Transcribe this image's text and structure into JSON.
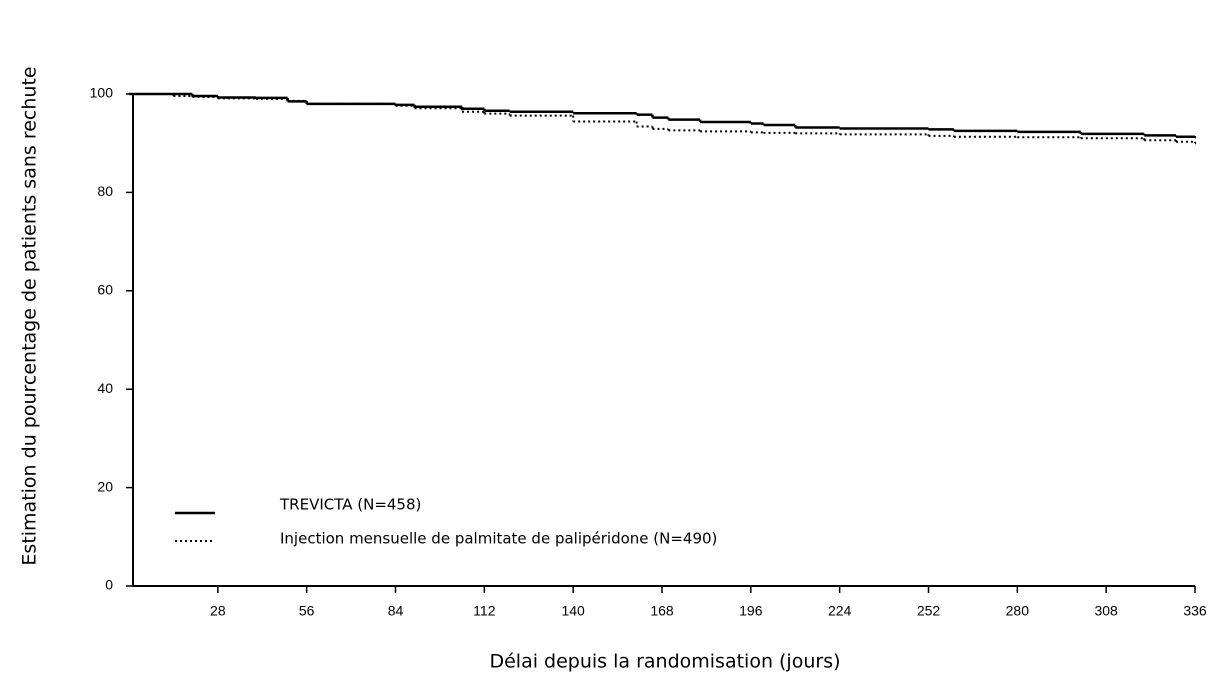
{
  "chart_data": {
    "type": "step",
    "x_label": "Délai depuis la randomisation (jours)",
    "y_label": "Estimation du pourcentage de patients sans rechute",
    "x": [
      0,
      14,
      20,
      28,
      40,
      50,
      56,
      84,
      90,
      105,
      112,
      120,
      140,
      160,
      165,
      170,
      180,
      196,
      200,
      210,
      224,
      252,
      260,
      280,
      300,
      320,
      330,
      336
    ],
    "series": [
      {
        "name": "TREVICTA (N=458)",
        "color": "#000000",
        "style": "solid",
        "values": [
          100,
          100,
          99.6,
          99.3,
          99.2,
          98.5,
          98,
          97.8,
          97.4,
          97,
          96.6,
          96.4,
          96.1,
          95.8,
          95.2,
          94.8,
          94.3,
          94,
          93.7,
          93.2,
          93,
          92.8,
          92.5,
          92.3,
          91.9,
          91.6,
          91.3,
          91.2
        ]
      },
      {
        "name": "Injection mensuelle de palmitate de palipéridone (N=490)",
        "color": "#000000",
        "style": "dotted",
        "values": [
          100,
          99.6,
          99.4,
          99.1,
          99,
          98.6,
          98,
          97.6,
          97.1,
          96.4,
          96,
          95.6,
          94.4,
          93.4,
          92.9,
          92.6,
          92.4,
          92.2,
          92.1,
          92,
          91.8,
          91.5,
          91.3,
          91.2,
          91,
          90.6,
          90.3,
          90
        ]
      }
    ],
    "xlim": [
      0,
      336
    ],
    "xticks": [
      28,
      56,
      84,
      112,
      140,
      168,
      196,
      224,
      252,
      280,
      308,
      336
    ],
    "ylim": [
      0,
      100
    ],
    "yticks": [
      0,
      20,
      40,
      60,
      80,
      100
    ],
    "legend": "lower-left",
    "grid": false
  }
}
